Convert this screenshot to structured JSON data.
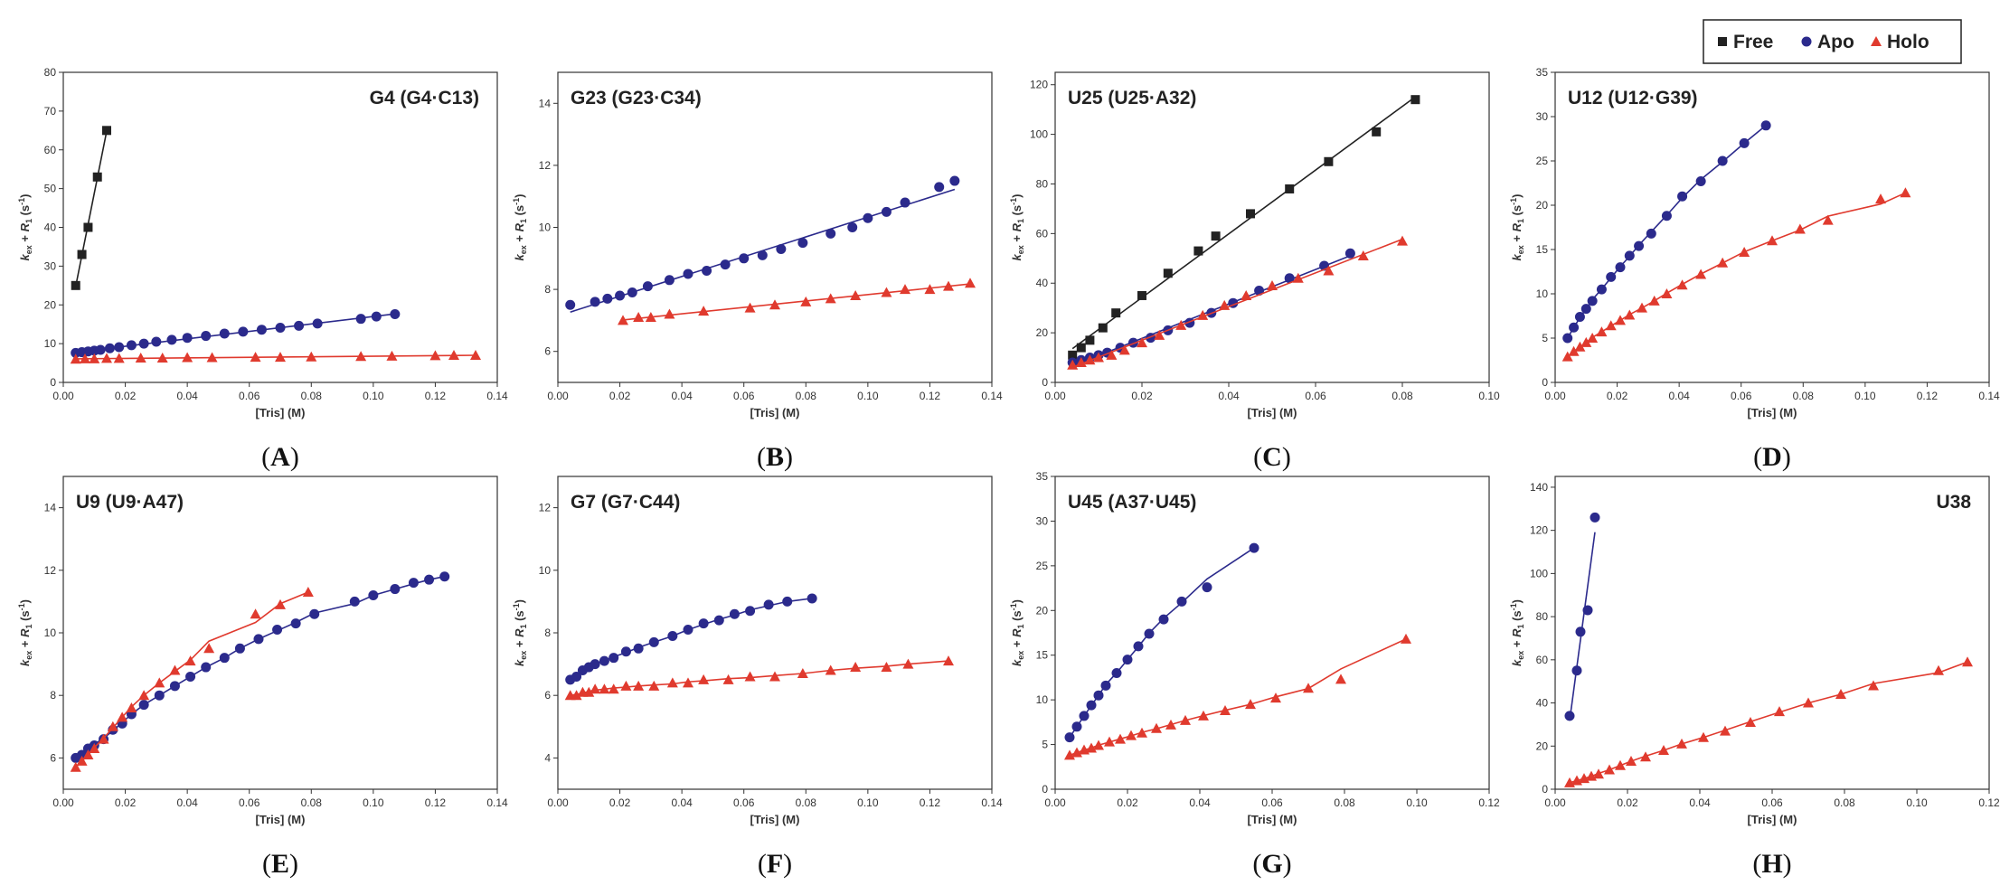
{
  "legend": [
    {
      "label": "Free",
      "color": "#222222",
      "marker": "square"
    },
    {
      "label": "Apo",
      "color": "#2b2a8c",
      "marker": "circle"
    },
    {
      "label": "Holo",
      "color": "#e03a2e",
      "marker": "triangle"
    }
  ],
  "chart_data": [
    {
      "type": "scatter",
      "panel": "A",
      "title": "G4 (G4·C13)",
      "xlabel": "[Tris] (M)",
      "ylabel": "kex + R1 (s-1)",
      "ylabel_parts": {
        "k": "k",
        "k_sub": "ex",
        "plus": " + ",
        "r": "R",
        "r_sub": "1",
        "unit": " (s",
        "unit_sup": "-1",
        "close": ")"
      },
      "xlim": [
        0,
        0.14
      ],
      "ylim": [
        0,
        80
      ],
      "xticks": [
        "0.00",
        "0.02",
        "0.04",
        "0.06",
        "0.08",
        "0.10",
        "0.12",
        "0.14"
      ],
      "yticks": [
        "0",
        "10",
        "20",
        "30",
        "40",
        "50",
        "60",
        "70",
        "80"
      ],
      "series": [
        {
          "name": "Free",
          "x": [
            0.004,
            0.006,
            0.008,
            0.011,
            0.014
          ],
          "y": [
            25,
            33,
            40,
            53,
            65
          ],
          "fit": "line"
        },
        {
          "name": "Apo",
          "x": [
            0.004,
            0.006,
            0.008,
            0.01,
            0.012,
            0.015,
            0.018,
            0.022,
            0.026,
            0.03,
            0.035,
            0.04,
            0.046,
            0.052,
            0.058,
            0.064,
            0.07,
            0.076,
            0.082,
            0.096,
            0.101,
            0.107
          ],
          "y": [
            7.6,
            7.8,
            8.0,
            8.2,
            8.4,
            8.8,
            9.1,
            9.6,
            10.0,
            10.5,
            11.0,
            11.5,
            12.0,
            12.6,
            13.1,
            13.6,
            14.1,
            14.6,
            15.2,
            16.4,
            17.0,
            17.6
          ],
          "fit": "line"
        },
        {
          "name": "Holo",
          "x": [
            0.004,
            0.007,
            0.01,
            0.014,
            0.018,
            0.025,
            0.032,
            0.04,
            0.048,
            0.062,
            0.07,
            0.08,
            0.096,
            0.106,
            0.12,
            0.126,
            0.133
          ],
          "y": [
            6.0,
            6.1,
            6.1,
            6.2,
            6.2,
            6.3,
            6.3,
            6.4,
            6.4,
            6.5,
            6.5,
            6.6,
            6.7,
            6.8,
            6.9,
            7.0,
            7.0
          ],
          "fit": "line"
        }
      ]
    },
    {
      "type": "scatter",
      "panel": "B",
      "title": "G23 (G23·C34)",
      "xlabel": "[Tris] (M)",
      "ylabel": "kex + R1 (s-1)",
      "ylabel_parts": {
        "k": "k",
        "k_sub": "ex",
        "plus": " + ",
        "r": "R",
        "r_sub": "1",
        "unit": " (s",
        "unit_sup": "-1",
        "close": ")"
      },
      "xlim": [
        0,
        0.14
      ],
      "ylim": [
        5,
        15
      ],
      "xticks": [
        "0.00",
        "0.02",
        "0.04",
        "0.06",
        "0.08",
        "0.10",
        "0.12",
        "0.14"
      ],
      "yticks": [
        "6",
        "8",
        "10",
        "12",
        "14"
      ],
      "series": [
        {
          "name": "Apo",
          "x": [
            0.004,
            0.012,
            0.016,
            0.02,
            0.024,
            0.029,
            0.036,
            0.042,
            0.048,
            0.054,
            0.06,
            0.066,
            0.072,
            0.079,
            0.088,
            0.095,
            0.1,
            0.106,
            0.112,
            0.123,
            0.128
          ],
          "y": [
            7.5,
            7.6,
            7.7,
            7.8,
            7.9,
            8.1,
            8.3,
            8.5,
            8.6,
            8.8,
            9.0,
            9.1,
            9.3,
            9.5,
            9.8,
            10.0,
            10.3,
            10.5,
            10.8,
            11.3,
            11.5
          ],
          "fit": "line"
        },
        {
          "name": "Holo",
          "x": [
            0.021,
            0.026,
            0.03,
            0.036,
            0.047,
            0.062,
            0.07,
            0.08,
            0.088,
            0.096,
            0.106,
            0.112,
            0.12,
            0.126,
            0.133
          ],
          "y": [
            7.0,
            7.1,
            7.1,
            7.2,
            7.3,
            7.4,
            7.5,
            7.6,
            7.7,
            7.8,
            7.9,
            8.0,
            8.0,
            8.1,
            8.2
          ],
          "fit": "line"
        }
      ]
    },
    {
      "type": "scatter",
      "panel": "C",
      "title": "U25 (U25·A32)",
      "xlabel": "[Tris] (M)",
      "ylabel": "kex + R1 (s-1)",
      "ylabel_parts": {
        "k": "k",
        "k_sub": "ex",
        "plus": " + ",
        "r": "R",
        "r_sub": "1",
        "unit": " (s",
        "unit_sup": "-1",
        "close": ")"
      },
      "xlim": [
        0,
        0.1
      ],
      "ylim": [
        0,
        125
      ],
      "xticks": [
        "0.00",
        "0.02",
        "0.04",
        "0.06",
        "0.08",
        "0.10"
      ],
      "yticks": [
        "0",
        "20",
        "40",
        "60",
        "80",
        "100",
        "120"
      ],
      "series": [
        {
          "name": "Free",
          "x": [
            0.004,
            0.006,
            0.008,
            0.011,
            0.014,
            0.02,
            0.026,
            0.033,
            0.037,
            0.045,
            0.054,
            0.063,
            0.074,
            0.083
          ],
          "y": [
            11,
            14,
            17,
            22,
            28,
            35,
            44,
            53,
            59,
            68,
            78,
            89,
            101,
            114
          ],
          "fit": "line"
        },
        {
          "name": "Apo",
          "x": [
            0.004,
            0.006,
            0.008,
            0.01,
            0.012,
            0.015,
            0.018,
            0.022,
            0.026,
            0.031,
            0.036,
            0.041,
            0.047,
            0.054,
            0.062,
            0.068
          ],
          "y": [
            8,
            9,
            10,
            11,
            12,
            14,
            16,
            18,
            21,
            24,
            28,
            32,
            37,
            42,
            47,
            52
          ],
          "fit": "line"
        },
        {
          "name": "Holo",
          "x": [
            0.004,
            0.006,
            0.008,
            0.01,
            0.013,
            0.016,
            0.02,
            0.024,
            0.029,
            0.034,
            0.039,
            0.044,
            0.05,
            0.056,
            0.063,
            0.071,
            0.08
          ],
          "y": [
            7,
            8,
            9,
            10,
            11,
            13,
            16,
            19,
            23,
            27,
            31,
            35,
            39,
            42,
            45,
            51,
            57
          ],
          "fit": "line"
        }
      ]
    },
    {
      "type": "scatter",
      "panel": "D",
      "title": "U12 (U12·G39)",
      "xlabel": "[Tris] (M)",
      "ylabel": "kex + R1 (s-1)",
      "ylabel_parts": {
        "k": "k",
        "k_sub": "ex",
        "plus": " + ",
        "r": "R",
        "r_sub": "1",
        "unit": " (s",
        "unit_sup": "-1",
        "close": ")"
      },
      "xlim": [
        0,
        0.14
      ],
      "ylim": [
        0,
        35
      ],
      "xticks": [
        "0.00",
        "0.02",
        "0.04",
        "0.06",
        "0.08",
        "0.10",
        "0.12",
        "0.14"
      ],
      "yticks": [
        "0",
        "5",
        "10",
        "15",
        "20",
        "25",
        "30",
        "35"
      ],
      "series": [
        {
          "name": "Apo",
          "x": [
            0.004,
            0.006,
            0.008,
            0.01,
            0.012,
            0.015,
            0.018,
            0.021,
            0.024,
            0.027,
            0.031,
            0.036,
            0.041,
            0.047,
            0.054,
            0.061,
            0.068
          ],
          "y": [
            5.0,
            6.2,
            7.4,
            8.3,
            9.2,
            10.5,
            11.9,
            13.0,
            14.3,
            15.4,
            16.8,
            18.8,
            21.0,
            22.7,
            25.0,
            27.0,
            29.0
          ],
          "fit": "curve"
        },
        {
          "name": "Holo",
          "x": [
            0.004,
            0.006,
            0.008,
            0.01,
            0.012,
            0.015,
            0.018,
            0.021,
            0.024,
            0.028,
            0.032,
            0.036,
            0.041,
            0.047,
            0.054,
            0.061,
            0.07,
            0.079,
            0.088,
            0.105,
            0.113
          ],
          "y": [
            2.9,
            3.5,
            4.0,
            4.5,
            5.0,
            5.7,
            6.4,
            7.0,
            7.6,
            8.4,
            9.2,
            10.0,
            11.0,
            12.2,
            13.5,
            14.7,
            16.0,
            17.3,
            18.3,
            20.7,
            21.4
          ],
          "fit": "curve"
        }
      ]
    },
    {
      "type": "scatter",
      "panel": "E",
      "title": "U9 (U9·A47)",
      "xlabel": "[Tris] (M)",
      "ylabel": "kex + R1 (s-1)",
      "ylabel_parts": {
        "k": "k",
        "k_sub": "ex",
        "plus": " + ",
        "r": "R",
        "r_sub": "1",
        "unit": " (s",
        "unit_sup": "-1",
        "close": ")"
      },
      "xlim": [
        0,
        0.14
      ],
      "ylim": [
        5,
        15
      ],
      "xticks": [
        "0.00",
        "0.02",
        "0.04",
        "0.06",
        "0.08",
        "0.10",
        "0.12",
        "0.14"
      ],
      "yticks": [
        "6",
        "8",
        "10",
        "12",
        "14"
      ],
      "series": [
        {
          "name": "Apo",
          "x": [
            0.004,
            0.006,
            0.008,
            0.01,
            0.013,
            0.016,
            0.019,
            0.022,
            0.026,
            0.031,
            0.036,
            0.041,
            0.046,
            0.052,
            0.057,
            0.063,
            0.069,
            0.075,
            0.081,
            0.094,
            0.1,
            0.107,
            0.113,
            0.118,
            0.123
          ],
          "y": [
            6.0,
            6.1,
            6.3,
            6.4,
            6.6,
            6.9,
            7.1,
            7.4,
            7.7,
            8.0,
            8.3,
            8.6,
            8.9,
            9.2,
            9.5,
            9.8,
            10.1,
            10.3,
            10.6,
            11.0,
            11.2,
            11.4,
            11.6,
            11.7,
            11.8
          ],
          "fit": "curve"
        },
        {
          "name": "Holo",
          "x": [
            0.004,
            0.006,
            0.008,
            0.01,
            0.013,
            0.016,
            0.019,
            0.022,
            0.026,
            0.031,
            0.036,
            0.041,
            0.047,
            0.062,
            0.07,
            0.079
          ],
          "y": [
            5.7,
            5.9,
            6.1,
            6.3,
            6.6,
            7.0,
            7.3,
            7.6,
            8.0,
            8.4,
            8.8,
            9.1,
            9.5,
            10.6,
            10.9,
            11.3
          ],
          "fit": "curve"
        }
      ]
    },
    {
      "type": "scatter",
      "panel": "F",
      "title": "G7 (G7·C44)",
      "xlabel": "[Tris] (M)",
      "ylabel": "kex + R1 (s-1)",
      "ylabel_parts": {
        "k": "k",
        "k_sub": "ex",
        "plus": " + ",
        "r": "R",
        "r_sub": "1",
        "unit": " (s",
        "unit_sup": "-1",
        "close": ")"
      },
      "xlim": [
        0,
        0.14
      ],
      "ylim": [
        3,
        13
      ],
      "xticks": [
        "0.00",
        "0.02",
        "0.04",
        "0.06",
        "0.08",
        "0.10",
        "0.12",
        "0.14"
      ],
      "yticks": [
        "4",
        "6",
        "8",
        "10",
        "12"
      ],
      "series": [
        {
          "name": "Apo",
          "x": [
            0.004,
            0.006,
            0.008,
            0.01,
            0.012,
            0.015,
            0.018,
            0.022,
            0.026,
            0.031,
            0.037,
            0.042,
            0.047,
            0.052,
            0.057,
            0.062,
            0.068,
            0.074,
            0.082
          ],
          "y": [
            6.5,
            6.6,
            6.8,
            6.9,
            7.0,
            7.1,
            7.2,
            7.4,
            7.5,
            7.7,
            7.9,
            8.1,
            8.3,
            8.4,
            8.6,
            8.7,
            8.9,
            9.0,
            9.1
          ],
          "fit": "curve"
        },
        {
          "name": "Holo",
          "x": [
            0.004,
            0.006,
            0.008,
            0.01,
            0.012,
            0.015,
            0.018,
            0.022,
            0.026,
            0.031,
            0.037,
            0.042,
            0.047,
            0.055,
            0.062,
            0.07,
            0.079,
            0.088,
            0.096,
            0.106,
            0.113,
            0.126
          ],
          "y": [
            6.0,
            6.0,
            6.1,
            6.1,
            6.2,
            6.2,
            6.2,
            6.3,
            6.3,
            6.3,
            6.4,
            6.4,
            6.5,
            6.5,
            6.6,
            6.6,
            6.7,
            6.8,
            6.9,
            6.9,
            7.0,
            7.1
          ],
          "fit": "curve"
        }
      ]
    },
    {
      "type": "scatter",
      "panel": "G",
      "title": "U45 (A37·U45)",
      "xlabel": "[Tris] (M)",
      "ylabel": "kex + R1 (s-1)",
      "ylabel_parts": {
        "k": "k",
        "k_sub": "ex",
        "plus": " + ",
        "r": "R",
        "r_sub": "1",
        "unit": " (s",
        "unit_sup": "-1",
        "close": ")"
      },
      "xlim": [
        0,
        0.12
      ],
      "ylim": [
        0,
        35
      ],
      "xticks": [
        "0.00",
        "0.02",
        "0.04",
        "0.06",
        "0.08",
        "0.10",
        "0.12"
      ],
      "yticks": [
        "0",
        "5",
        "10",
        "15",
        "20",
        "25",
        "30",
        "35"
      ],
      "series": [
        {
          "name": "Apo",
          "x": [
            0.004,
            0.006,
            0.008,
            0.01,
            0.012,
            0.014,
            0.017,
            0.02,
            0.023,
            0.026,
            0.03,
            0.035,
            0.042,
            0.055
          ],
          "y": [
            5.8,
            7.0,
            8.2,
            9.4,
            10.5,
            11.6,
            13.0,
            14.5,
            16.0,
            17.4,
            19.0,
            21.0,
            22.6,
            27.0
          ],
          "fit": "curve"
        },
        {
          "name": "Holo",
          "x": [
            0.004,
            0.006,
            0.008,
            0.01,
            0.012,
            0.015,
            0.018,
            0.021,
            0.024,
            0.028,
            0.032,
            0.036,
            0.041,
            0.047,
            0.054,
            0.061,
            0.07,
            0.079,
            0.097
          ],
          "y": [
            3.8,
            4.1,
            4.4,
            4.6,
            4.9,
            5.3,
            5.6,
            6.0,
            6.3,
            6.8,
            7.2,
            7.7,
            8.2,
            8.8,
            9.5,
            10.2,
            11.3,
            12.3,
            16.8
          ],
          "fit": "curve"
        }
      ]
    },
    {
      "type": "scatter",
      "panel": "H",
      "title": "U38",
      "xlabel": "[Tris] (M)",
      "ylabel": "kex + R1 (s-1)",
      "ylabel_parts": {
        "k": "k",
        "k_sub": "ex",
        "plus": " + ",
        "r": "R",
        "r_sub": "1",
        "unit": " (s",
        "unit_sup": "-1",
        "close": ")"
      },
      "xlim": [
        0,
        0.12
      ],
      "ylim": [
        0,
        145
      ],
      "xticks": [
        "0.00",
        "0.02",
        "0.04",
        "0.06",
        "0.08",
        "0.10",
        "0.12"
      ],
      "yticks": [
        "0",
        "20",
        "40",
        "60",
        "80",
        "100",
        "120",
        "140"
      ],
      "series": [
        {
          "name": "Apo",
          "x": [
            0.004,
            0.006,
            0.007,
            0.009,
            0.011
          ],
          "y": [
            34,
            55,
            73,
            83,
            126
          ],
          "fit": "line"
        },
        {
          "name": "Holo",
          "x": [
            0.004,
            0.006,
            0.008,
            0.01,
            0.012,
            0.015,
            0.018,
            0.021,
            0.025,
            0.03,
            0.035,
            0.041,
            0.047,
            0.054,
            0.062,
            0.07,
            0.079,
            0.088,
            0.106,
            0.114
          ],
          "y": [
            3,
            4,
            5,
            6,
            7,
            9,
            11,
            13,
            15,
            18,
            21,
            24,
            27,
            31,
            36,
            40,
            44,
            48,
            55,
            59
          ],
          "fit": "curve"
        }
      ]
    }
  ],
  "panel_labels": [
    "A",
    "B",
    "C",
    "D",
    "E",
    "F",
    "G",
    "H"
  ],
  "paren_open": "(",
  "paren_close": ")"
}
